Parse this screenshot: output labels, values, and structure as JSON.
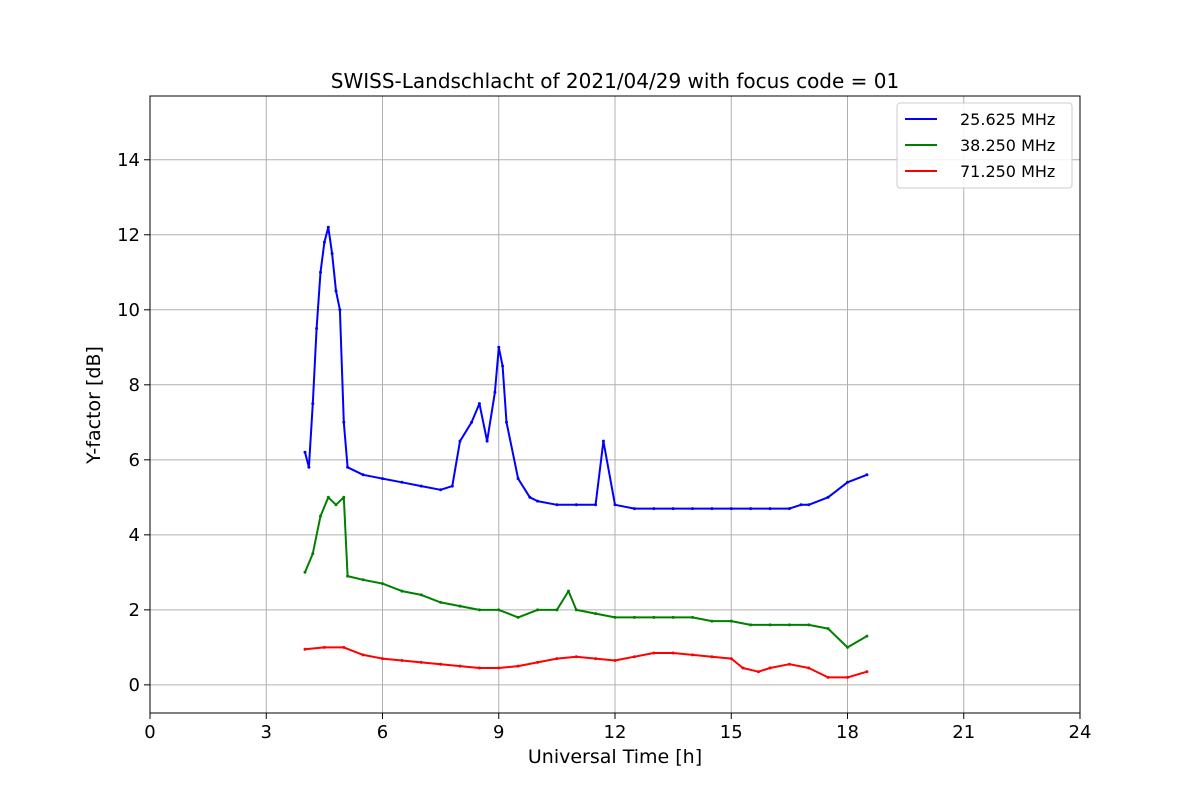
{
  "chart_data": {
    "type": "line",
    "title": "SWISS-Landschlacht of 2021/04/29 with focus code = 01",
    "xlabel": "Universal Time [h]",
    "ylabel": "Y-factor [dB]",
    "xlim": [
      0,
      24
    ],
    "ylim": [
      -0.75,
      15.7
    ],
    "xticks": [
      "0",
      "3",
      "6",
      "9",
      "12",
      "15",
      "18",
      "21",
      "24"
    ],
    "yticks": [
      "0",
      "2",
      "4",
      "6",
      "8",
      "10",
      "12",
      "14"
    ],
    "grid": true,
    "legend": "top-right",
    "series": [
      {
        "name": "25.625 MHz",
        "color": "#0000ff",
        "x": [
          4.0,
          4.1,
          4.2,
          4.3,
          4.4,
          4.5,
          4.6,
          4.7,
          4.8,
          4.9,
          5.0,
          5.1,
          5.5,
          6.0,
          6.5,
          7.0,
          7.5,
          7.8,
          8.0,
          8.3,
          8.5,
          8.7,
          8.9,
          9.0,
          9.1,
          9.2,
          9.5,
          9.8,
          10.0,
          10.5,
          11.0,
          11.5,
          11.7,
          12.0,
          12.5,
          13.0,
          13.5,
          14.0,
          14.5,
          15.0,
          15.5,
          16.0,
          16.5,
          16.8,
          17.0,
          17.5,
          18.0,
          18.5
        ],
        "values": [
          6.2,
          5.8,
          7.5,
          9.5,
          11.0,
          11.8,
          12.2,
          11.5,
          10.5,
          10.0,
          7.0,
          5.8,
          5.6,
          5.5,
          5.4,
          5.3,
          5.2,
          5.3,
          6.5,
          7.0,
          7.5,
          6.5,
          7.8,
          9.0,
          8.5,
          7.0,
          5.5,
          5.0,
          4.9,
          4.8,
          4.8,
          4.8,
          6.5,
          4.8,
          4.7,
          4.7,
          4.7,
          4.7,
          4.7,
          4.7,
          4.7,
          4.7,
          4.7,
          4.8,
          4.8,
          5.0,
          5.4,
          5.6
        ]
      },
      {
        "name": "38.250 MHz",
        "color": "#008000",
        "x": [
          4.0,
          4.2,
          4.4,
          4.6,
          4.8,
          5.0,
          5.1,
          5.5,
          6.0,
          6.5,
          7.0,
          7.5,
          8.0,
          8.5,
          9.0,
          9.5,
          10.0,
          10.5,
          10.8,
          11.0,
          11.5,
          12.0,
          12.5,
          13.0,
          13.5,
          14.0,
          14.5,
          15.0,
          15.5,
          16.0,
          16.5,
          17.0,
          17.5,
          18.0,
          18.5
        ],
        "values": [
          3.0,
          3.5,
          4.5,
          5.0,
          4.8,
          5.0,
          2.9,
          2.8,
          2.7,
          2.5,
          2.4,
          2.2,
          2.1,
          2.0,
          2.0,
          1.8,
          2.0,
          2.0,
          2.5,
          2.0,
          1.9,
          1.8,
          1.8,
          1.8,
          1.8,
          1.8,
          1.7,
          1.7,
          1.6,
          1.6,
          1.6,
          1.6,
          1.5,
          1.0,
          1.3
        ]
      },
      {
        "name": "71.250 MHz",
        "color": "#ff0000",
        "x": [
          4.0,
          4.5,
          5.0,
          5.5,
          6.0,
          6.5,
          7.0,
          7.5,
          8.0,
          8.5,
          9.0,
          9.5,
          10.0,
          10.5,
          11.0,
          11.5,
          12.0,
          12.5,
          13.0,
          13.5,
          14.0,
          14.5,
          15.0,
          15.3,
          15.7,
          16.0,
          16.5,
          17.0,
          17.5,
          18.0,
          18.5
        ],
        "values": [
          0.95,
          1.0,
          1.0,
          0.8,
          0.7,
          0.65,
          0.6,
          0.55,
          0.5,
          0.45,
          0.45,
          0.5,
          0.6,
          0.7,
          0.75,
          0.7,
          0.65,
          0.75,
          0.85,
          0.85,
          0.8,
          0.75,
          0.7,
          0.45,
          0.35,
          0.45,
          0.55,
          0.45,
          0.2,
          0.2,
          0.35
        ]
      }
    ]
  }
}
